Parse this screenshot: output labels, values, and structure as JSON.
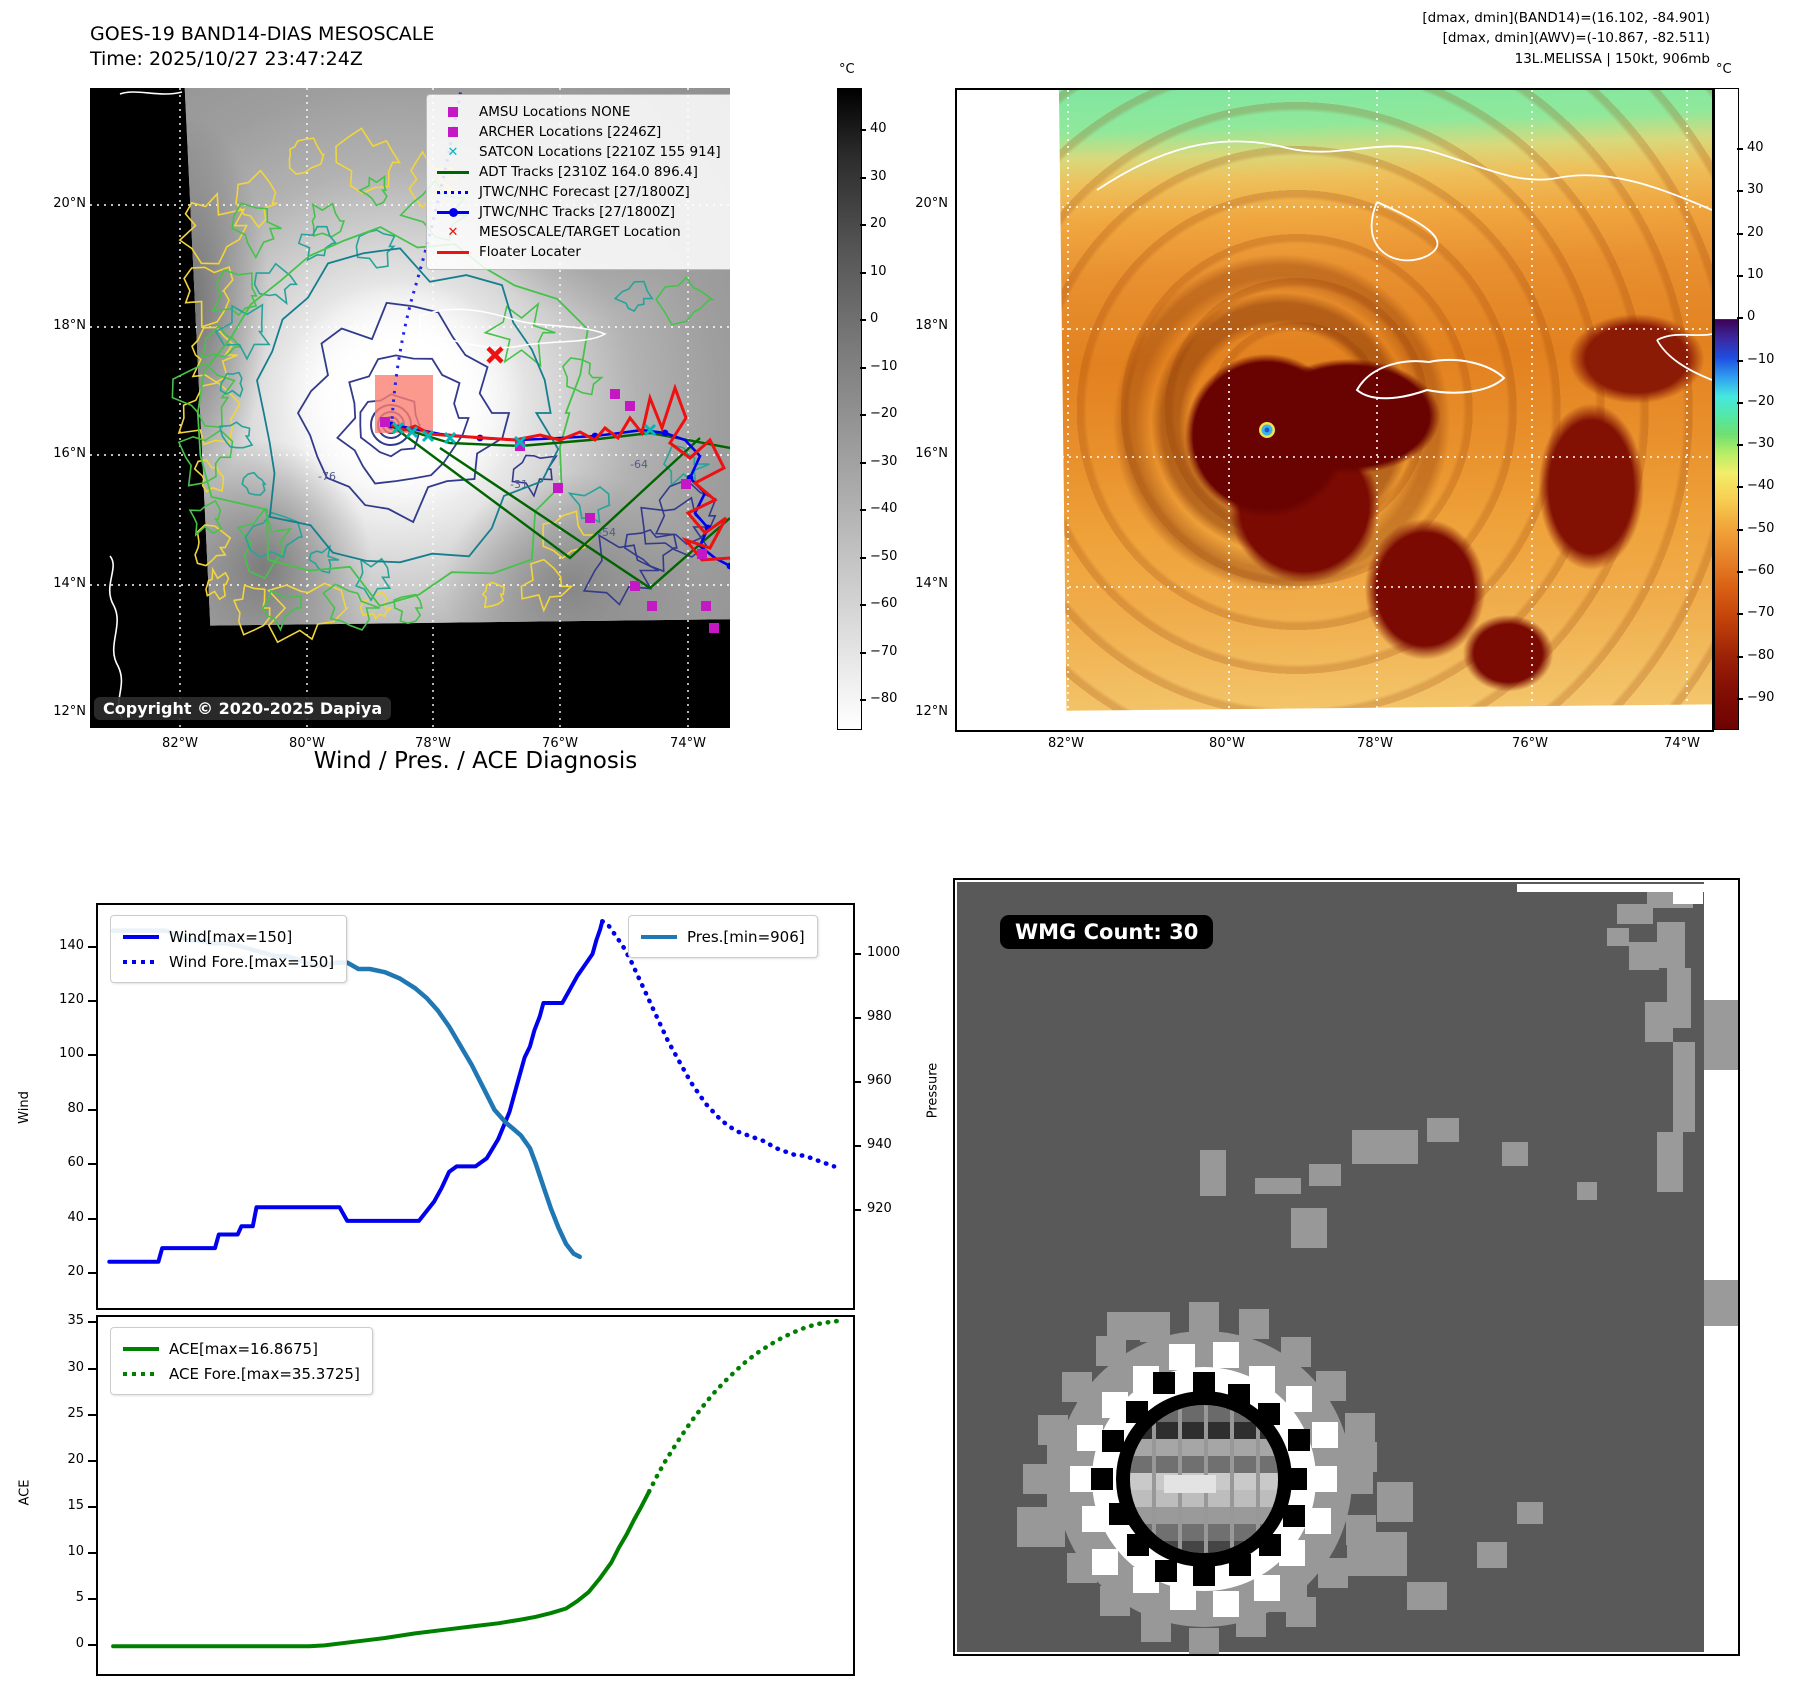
{
  "panel_tl": {
    "title": "GOES-19 BAND14-DIAS MESOSCALE",
    "time_line": "Time: 2025/10/27 23:47:24Z",
    "copyright": "Copyright © 2020-2025 Dapiya",
    "legend": [
      {
        "label": "AMSU Locations NONE",
        "marker": "magenta-square"
      },
      {
        "label": "ARCHER Locations [2246Z]",
        "marker": "magenta-square"
      },
      {
        "label": "SATCON Locations [2210Z 155 914]",
        "marker": "cyan-x"
      },
      {
        "label": "ADT Tracks [2310Z 164.0 896.4]",
        "marker": "green-line"
      },
      {
        "label": "JTWC/NHC Forecast [27/1800Z]",
        "marker": "blue-dotted-line"
      },
      {
        "label": "JTWC/NHC Tracks [27/1800Z]",
        "marker": "blue-line-dot"
      },
      {
        "label": "MESOSCALE/TARGET Location",
        "marker": "red-x"
      },
      {
        "label": "Floater Locater",
        "marker": "red-line"
      }
    ],
    "lat_ticks": [
      "20°N",
      "18°N",
      "16°N",
      "14°N",
      "12°N"
    ],
    "lon_ticks": [
      "82°W",
      "80°W",
      "78°W",
      "76°W",
      "74°W"
    ],
    "contour_labels": [
      "-31",
      "-54",
      "-64",
      "-76"
    ],
    "colorbar": {
      "unit": "°C",
      "ticks": [
        "40",
        "30",
        "20",
        "10",
        "0",
        "−10",
        "−20",
        "−30",
        "−40",
        "−50",
        "−60",
        "−70",
        "−80"
      ]
    }
  },
  "panel_tr": {
    "info_line1": "[dmax, dmin](BAND14)=(16.102, -84.901)",
    "info_line2": "[dmax, dmin](AWV)=(-10.867, -82.511)",
    "info_line3": "13L.MELISSA | 150kt, 906mb",
    "lat_ticks": [
      "20°N",
      "18°N",
      "16°N",
      "14°N",
      "12°N"
    ],
    "lon_ticks": [
      "82°W",
      "80°W",
      "78°W",
      "76°W",
      "74°W"
    ],
    "colorbar": {
      "unit": "°C",
      "ticks": [
        "40",
        "30",
        "20",
        "10",
        "0",
        "−10",
        "−20",
        "−30",
        "−40",
        "−50",
        "−60",
        "−70",
        "−80",
        "−90"
      ]
    }
  },
  "panel_bl": {
    "title": "Wind / Pres. / ACE Diagnosis",
    "ylabel_wind": "Wind",
    "ylabel_pressure": "Pressure",
    "ylabel_ace": "ACE"
  },
  "panel_br": {
    "wmg_label": "WMG Count: 30"
  },
  "chart_data": [
    {
      "type": "line",
      "title": "Wind / Pres. / ACE Diagnosis",
      "panel": "wind-pressure",
      "ylabel_left": "Wind",
      "ylabel_right": "Pressure",
      "y_left_ticks": [
        20,
        40,
        60,
        80,
        100,
        120,
        140
      ],
      "y_left_range": [
        8,
        156
      ],
      "y_right_ticks": [
        920,
        940,
        960,
        980,
        1000
      ],
      "y_right_range": [
        890,
        1016
      ],
      "x_range": [
        0,
        1
      ],
      "grid": false,
      "legend_positions": [
        "upper-left",
        "upper-right"
      ],
      "series": [
        {
          "name": "Wind[max=150]",
          "style": "solid",
          "color": "#0000ee",
          "axis": "left",
          "points": [
            [
              0.015,
              25
            ],
            [
              0.08,
              25
            ],
            [
              0.085,
              30
            ],
            [
              0.155,
              30
            ],
            [
              0.16,
              35
            ],
            [
              0.185,
              35
            ],
            [
              0.19,
              38
            ],
            [
              0.205,
              38
            ],
            [
              0.21,
              45
            ],
            [
              0.32,
              45
            ],
            [
              0.33,
              40
            ],
            [
              0.425,
              40
            ],
            [
              0.445,
              47
            ],
            [
              0.455,
              52
            ],
            [
              0.465,
              58
            ],
            [
              0.475,
              60
            ],
            [
              0.5,
              60
            ],
            [
              0.515,
              63
            ],
            [
              0.53,
              70
            ],
            [
              0.545,
              80
            ],
            [
              0.555,
              90
            ],
            [
              0.565,
              100
            ],
            [
              0.572,
              104
            ],
            [
              0.578,
              110
            ],
            [
              0.585,
              115
            ],
            [
              0.59,
              120
            ],
            [
              0.615,
              120
            ],
            [
              0.625,
              125
            ],
            [
              0.635,
              130
            ],
            [
              0.645,
              134
            ],
            [
              0.655,
              138
            ],
            [
              0.66,
              143
            ],
            [
              0.665,
              147
            ],
            [
              0.668,
              150
            ]
          ]
        },
        {
          "name": "Wind Fore.[max=150]",
          "style": "dotted",
          "color": "#0000ee",
          "axis": "left",
          "points": [
            [
              0.668,
              150
            ],
            [
              0.675,
              149
            ],
            [
              0.685,
              145
            ],
            [
              0.695,
              141
            ],
            [
              0.705,
              136
            ],
            [
              0.715,
              130
            ],
            [
              0.725,
              124
            ],
            [
              0.735,
              118
            ],
            [
              0.745,
              112
            ],
            [
              0.755,
              106
            ],
            [
              0.765,
              101
            ],
            [
              0.775,
              96
            ],
            [
              0.785,
              91
            ],
            [
              0.795,
              87
            ],
            [
              0.805,
              83
            ],
            [
              0.815,
              80
            ],
            [
              0.825,
              77
            ],
            [
              0.835,
              75
            ],
            [
              0.845,
              73
            ],
            [
              0.855,
              72
            ],
            [
              0.865,
              71
            ],
            [
              0.875,
              70
            ],
            [
              0.885,
              69
            ],
            [
              0.895,
              67
            ],
            [
              0.905,
              66
            ],
            [
              0.915,
              65
            ],
            [
              0.925,
              64
            ],
            [
              0.935,
              64
            ],
            [
              0.945,
              63
            ],
            [
              0.955,
              62
            ],
            [
              0.965,
              61
            ],
            [
              0.975,
              60
            ]
          ]
        },
        {
          "name": "Pres.[min=906]",
          "style": "solid",
          "color": "#1f77b4",
          "axis": "right",
          "points": [
            [
              0.02,
              1008
            ],
            [
              0.09,
              1008
            ],
            [
              0.1,
              1007
            ],
            [
              0.12,
              1005
            ],
            [
              0.135,
              1005
            ],
            [
              0.15,
              1004
            ],
            [
              0.17,
              1004
            ],
            [
              0.19,
              1003
            ],
            [
              0.22,
              1001
            ],
            [
              0.235,
              1000
            ],
            [
              0.25,
              1000
            ],
            [
              0.265,
              999
            ],
            [
              0.275,
              998
            ],
            [
              0.285,
              997
            ],
            [
              0.3,
              997
            ],
            [
              0.315,
              998
            ],
            [
              0.33,
              998
            ],
            [
              0.345,
              996
            ],
            [
              0.36,
              996
            ],
            [
              0.38,
              995
            ],
            [
              0.4,
              993
            ],
            [
              0.42,
              990
            ],
            [
              0.435,
              987
            ],
            [
              0.45,
              983
            ],
            [
              0.465,
              978
            ],
            [
              0.48,
              972
            ],
            [
              0.495,
              966
            ],
            [
              0.51,
              959
            ],
            [
              0.525,
              952
            ],
            [
              0.54,
              948
            ],
            [
              0.55,
              946
            ],
            [
              0.56,
              944
            ],
            [
              0.572,
              940
            ],
            [
              0.58,
              935
            ],
            [
              0.59,
              928
            ],
            [
              0.6,
              921
            ],
            [
              0.61,
              915
            ],
            [
              0.62,
              910
            ],
            [
              0.63,
              907
            ],
            [
              0.638,
              906
            ]
          ]
        }
      ]
    },
    {
      "type": "line",
      "panel": "ace",
      "ylabel_left": "ACE",
      "y_left_ticks": [
        0,
        5,
        10,
        15,
        20,
        25,
        30,
        35
      ],
      "y_left_range": [
        -2.9,
        35.8
      ],
      "x_range": [
        0,
        1
      ],
      "grid": false,
      "series": [
        {
          "name": "ACE[max=16.8675]",
          "style": "solid",
          "color": "#008000",
          "axis": "left",
          "points": [
            [
              0.02,
              0.1
            ],
            [
              0.28,
              0.1
            ],
            [
              0.3,
              0.2
            ],
            [
              0.34,
              0.6
            ],
            [
              0.38,
              1.0
            ],
            [
              0.42,
              1.5
            ],
            [
              0.46,
              1.9
            ],
            [
              0.5,
              2.3
            ],
            [
              0.53,
              2.6
            ],
            [
              0.56,
              3.0
            ],
            [
              0.58,
              3.3
            ],
            [
              0.6,
              3.7
            ],
            [
              0.62,
              4.2
            ],
            [
              0.635,
              5.0
            ],
            [
              0.65,
              6.0
            ],
            [
              0.665,
              7.5
            ],
            [
              0.68,
              9.2
            ],
            [
              0.69,
              10.8
            ],
            [
              0.7,
              12.2
            ],
            [
              0.71,
              13.8
            ],
            [
              0.72,
              15.3
            ],
            [
              0.73,
              16.87
            ]
          ]
        },
        {
          "name": "ACE Fore.[max=35.3725]",
          "style": "dotted",
          "color": "#008000",
          "axis": "left",
          "points": [
            [
              0.73,
              16.87
            ],
            [
              0.74,
              18.5
            ],
            [
              0.75,
              20.0
            ],
            [
              0.76,
              21.3
            ],
            [
              0.77,
              22.6
            ],
            [
              0.785,
              24.4
            ],
            [
              0.8,
              26.0
            ],
            [
              0.815,
              27.5
            ],
            [
              0.83,
              28.8
            ],
            [
              0.845,
              30.0
            ],
            [
              0.86,
              31.1
            ],
            [
              0.875,
              32.0
            ],
            [
              0.89,
              32.8
            ],
            [
              0.905,
              33.5
            ],
            [
              0.92,
              34.1
            ],
            [
              0.935,
              34.6
            ],
            [
              0.95,
              35.0
            ],
            [
              0.965,
              35.2
            ],
            [
              0.98,
              35.37
            ]
          ]
        }
      ]
    }
  ]
}
